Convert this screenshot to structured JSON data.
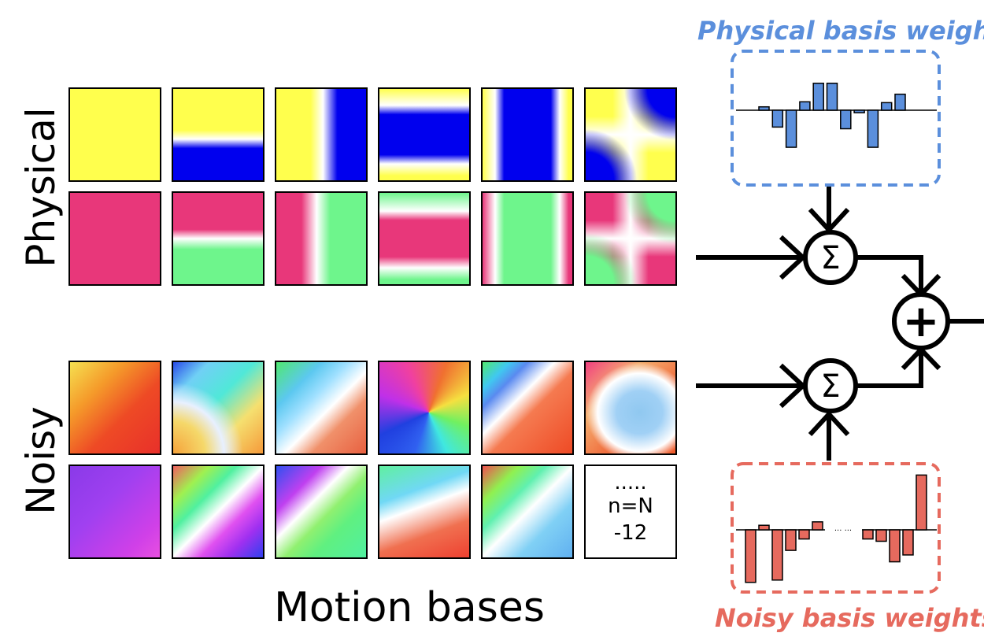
{
  "row_labels": {
    "physical": "Physical",
    "noisy": "Noisy"
  },
  "column_label": "Motion bases",
  "weights": {
    "physical_title": "Physical basis weights",
    "noisy_title": "Noisy basis weights",
    "noisy_ellipsis": "··· ···"
  },
  "last_tile": {
    "dots": ".....",
    "line1": "n=N",
    "line2": "-12"
  },
  "operators": {
    "sum": "Σ",
    "plus": "+"
  },
  "colors": {
    "physical_yellow": "#ffff4d",
    "physical_blue": "#0000ee",
    "physical_pink": "#e8377a",
    "physical_green": "#6ef58c",
    "blue_bars": "#5b8fdc",
    "red_bars": "#e66a5e"
  },
  "chart_data": [
    {
      "type": "bar",
      "title": "Physical basis weights",
      "values": [
        0.2,
        -1.0,
        -2.2,
        0.5,
        1.6,
        1.6,
        -1.1,
        -0.15,
        -2.2,
        0.45,
        0.95
      ],
      "ylim": [
        -2.4,
        1.9
      ],
      "axis_ticks": false
    },
    {
      "type": "bar",
      "title": "Noisy basis weights",
      "values": [
        -2.3,
        0.2,
        -2.2,
        -0.9,
        -0.4,
        0.35,
        -0.4,
        -0.5,
        -1.4,
        -1.1,
        2.4
      ],
      "ylim": [
        -2.4,
        2.6
      ],
      "axis_ticks": false
    }
  ]
}
